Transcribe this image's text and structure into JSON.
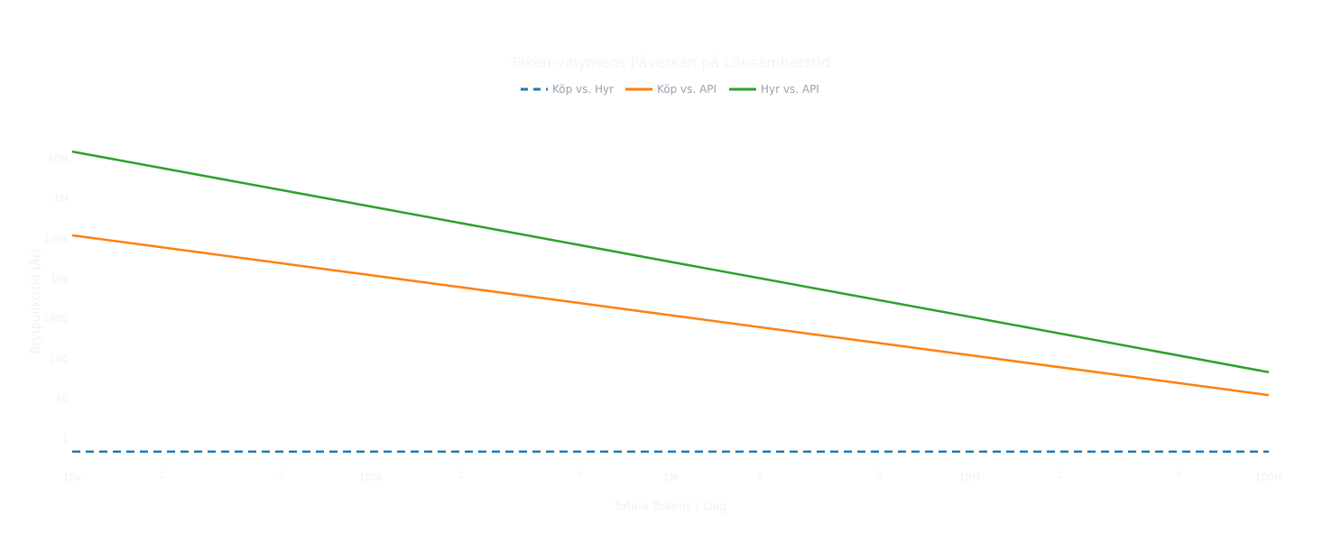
{
  "chart_data": {
    "type": "line",
    "title": "Token-volymens Påverkan på Lönsamhetstid",
    "xlabel": "Totala Tokens / Dag",
    "ylabel": "Brytpunktstid (År)",
    "x_scale": "log",
    "y_scale": "log",
    "xlim": [
      10000,
      100000000
    ],
    "ylim": [
      0.22,
      38000000
    ],
    "grid": false,
    "legend_position": "top-center",
    "x_ticks": [
      {
        "value": 10000,
        "label": "10k"
      },
      {
        "value": 20000,
        "label": "2"
      },
      {
        "value": 50000,
        "label": "5"
      },
      {
        "value": 100000,
        "label": "100k"
      },
      {
        "value": 200000,
        "label": "2"
      },
      {
        "value": 500000,
        "label": "5"
      },
      {
        "value": 1000000,
        "label": "1M"
      },
      {
        "value": 2000000,
        "label": "2"
      },
      {
        "value": 5000000,
        "label": "5"
      },
      {
        "value": 10000000,
        "label": "10M"
      },
      {
        "value": 20000000,
        "label": "2"
      },
      {
        "value": 50000000,
        "label": "5"
      },
      {
        "value": 100000000,
        "label": "100M"
      }
    ],
    "y_ticks": [
      {
        "value": 1,
        "label": "1"
      },
      {
        "value": 10,
        "label": "10"
      },
      {
        "value": 100,
        "label": "100"
      },
      {
        "value": 1000,
        "label": "1000"
      },
      {
        "value": 10000,
        "label": "10k"
      },
      {
        "value": 100000,
        "label": "100k"
      },
      {
        "value": 1000000,
        "label": "1M"
      },
      {
        "value": 10000000,
        "label": "10M"
      }
    ],
    "x": [
      10000,
      100000,
      1000000,
      10000000,
      100000000
    ],
    "series": [
      {
        "name": "Köp vs. Hyr",
        "color": "#1f77b4",
        "dash": "dash",
        "values": [
          0.46,
          0.46,
          0.46,
          0.46,
          0.46
        ]
      },
      {
        "name": "Köp vs. API",
        "color": "#ff7f0e",
        "dash": "solid",
        "values": [
          120000,
          12000,
          1200,
          120,
          12
        ]
      },
      {
        "name": "Hyr vs. API",
        "color": "#2ca02c",
        "dash": "solid",
        "values": [
          15000000,
          630000,
          26000,
          1100,
          45
        ]
      }
    ]
  }
}
